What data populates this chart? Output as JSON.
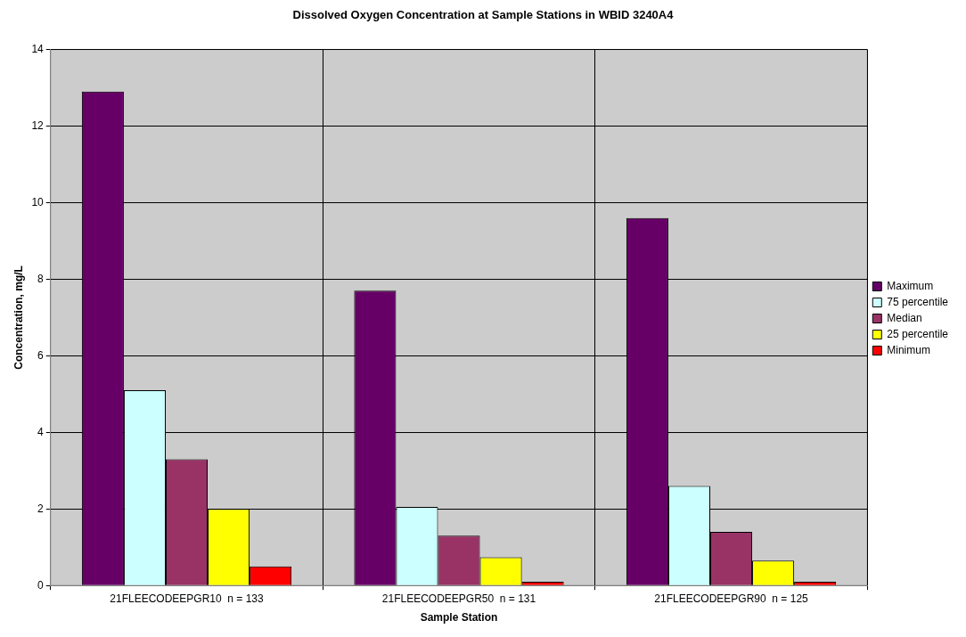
{
  "chart_data": {
    "type": "bar",
    "title": "Dissolved Oxygen Concentration at Sample Stations in WBID 3240A4",
    "xlabel": "Sample Station",
    "ylabel": "Concentration, mg/L",
    "categories": [
      "21FLEECODEEPGR10  n = 133",
      "21FLEECODEEPGR50  n = 131",
      "21FLEECODEEPGR90  n = 125"
    ],
    "series": [
      {
        "name": "Maximum",
        "color": "#660066",
        "values": [
          12.9,
          7.7,
          9.6
        ]
      },
      {
        "name": "75 percentile",
        "color": "#ccffff",
        "values": [
          5.1,
          2.05,
          2.6
        ]
      },
      {
        "name": "Median",
        "color": "#993366",
        "values": [
          3.3,
          1.3,
          1.4
        ]
      },
      {
        "name": "25 percentile",
        "color": "#ffff00",
        "values": [
          2.0,
          0.74,
          0.65
        ]
      },
      {
        "name": "Minimum",
        "color": "#ff0000",
        "values": [
          0.5,
          0.1,
          0.1
        ]
      }
    ],
    "ylim": [
      0,
      14
    ],
    "yticks": [
      0,
      2,
      4,
      6,
      8,
      10,
      12,
      14
    ],
    "grid": true,
    "legend": "right"
  }
}
